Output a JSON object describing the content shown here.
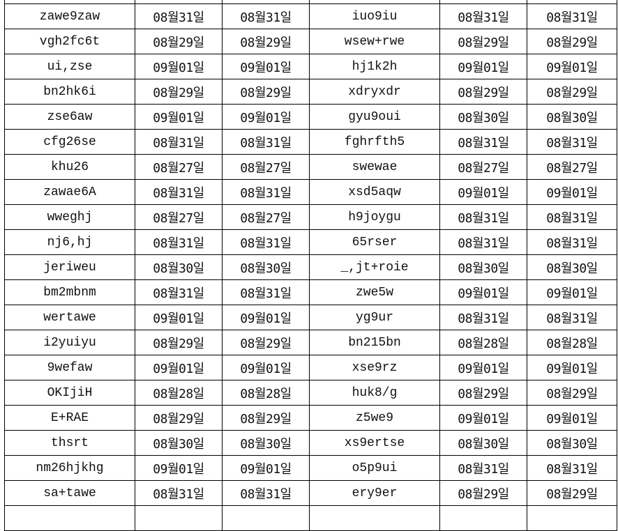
{
  "rows": [
    [
      "zawe9zaw",
      "08월31일",
      "08월31일",
      "iuo9iu",
      "08월31일",
      "08월31일"
    ],
    [
      "vgh2fc6t",
      "08월29일",
      "08월29일",
      "wsew+rwe",
      "08월29일",
      "08월29일"
    ],
    [
      "ui,zse",
      "09월01일",
      "09월01일",
      "hj1k2h",
      "09월01일",
      "09월01일"
    ],
    [
      "bn2hk6i",
      "08월29일",
      "08월29일",
      "xdryxdr",
      "08월29일",
      "08월29일"
    ],
    [
      "zse6aw",
      "09월01일",
      "09월01일",
      "gyu9oui",
      "08월30일",
      "08월30일"
    ],
    [
      "cfg26se",
      "08월31일",
      "08월31일",
      "fghrfth5",
      "08월31일",
      "08월31일"
    ],
    [
      "khu26",
      "08월27일",
      "08월27일",
      "swewae",
      "08월27일",
      "08월27일"
    ],
    [
      "zawae6A",
      "08월31일",
      "08월31일",
      "xsd5aqw",
      "09월01일",
      "09월01일"
    ],
    [
      "wweghj",
      "08월27일",
      "08월27일",
      "h9joygu",
      "08월31일",
      "08월31일"
    ],
    [
      "nj6,hj",
      "08월31일",
      "08월31일",
      "65rser",
      "08월31일",
      "08월31일"
    ],
    [
      "jeriweu",
      "08월30일",
      "08월30일",
      "_,jt+roie",
      "08월30일",
      "08월30일"
    ],
    [
      "bm2mbnm",
      "08월31일",
      "08월31일",
      "zwe5w",
      "09월01일",
      "09월01일"
    ],
    [
      "wertawe",
      "09월01일",
      "09월01일",
      "yg9ur",
      "08월31일",
      "08월31일"
    ],
    [
      "i2yuiyu",
      "08월29일",
      "08월29일",
      "bn215bn",
      "08월28일",
      "08월28일"
    ],
    [
      "9wefaw",
      "09월01일",
      "09월01일",
      "xse9rz",
      "09월01일",
      "09월01일"
    ],
    [
      "OKIjiH",
      "08월28일",
      "08월28일",
      "huk8/g",
      "08월29일",
      "08월29일"
    ],
    [
      "E+RAE",
      "08월29일",
      "08월29일",
      "z5we9",
      "09월01일",
      "09월01일"
    ],
    [
      "thsrt",
      "08월30일",
      "08월30일",
      "xs9ertse",
      "08월30일",
      "08월30일"
    ],
    [
      "nm26hjkhg",
      "09월01일",
      "09월01일",
      "o5p9ui",
      "08월31일",
      "08월31일"
    ],
    [
      "sa+tawe",
      "08월31일",
      "08월31일",
      "ery9er",
      "08월29일",
      "08월29일"
    ]
  ]
}
